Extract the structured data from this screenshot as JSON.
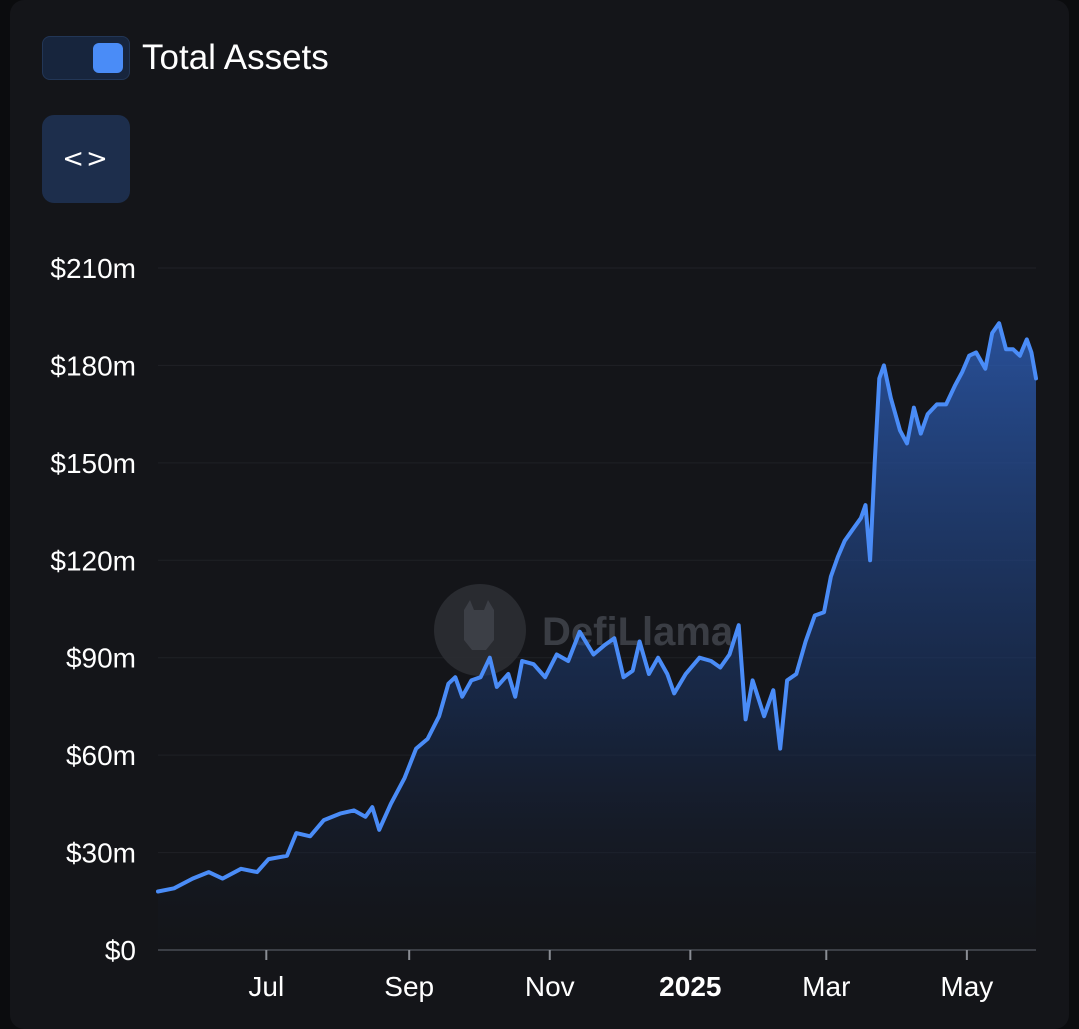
{
  "legend": {
    "label": "Total Assets",
    "color": "#4a8cf7"
  },
  "toolbar": {
    "embed_icon": "code-icon"
  },
  "watermark": {
    "text": "DefiLlama"
  },
  "chart_data": {
    "type": "area",
    "title": "",
    "xlabel": "",
    "ylabel": "",
    "grid": "horizontal",
    "legend_position": "top-left",
    "series": [
      {
        "name": "Total Assets",
        "color": "#4a8cf7",
        "points": [
          [
            "2024-05-15",
            18
          ],
          [
            "2024-05-22",
            19
          ],
          [
            "2024-05-30",
            22
          ],
          [
            "2024-06-06",
            24
          ],
          [
            "2024-06-12",
            22
          ],
          [
            "2024-06-20",
            25
          ],
          [
            "2024-06-27",
            24
          ],
          [
            "2024-07-02",
            28
          ],
          [
            "2024-07-10",
            29
          ],
          [
            "2024-07-14",
            36
          ],
          [
            "2024-07-20",
            35
          ],
          [
            "2024-07-26",
            40
          ],
          [
            "2024-08-02",
            42
          ],
          [
            "2024-08-08",
            43
          ],
          [
            "2024-08-13",
            41
          ],
          [
            "2024-08-16",
            44
          ],
          [
            "2024-08-19",
            37
          ],
          [
            "2024-08-24",
            45
          ],
          [
            "2024-08-30",
            53
          ],
          [
            "2024-09-04",
            62
          ],
          [
            "2024-09-09",
            65
          ],
          [
            "2024-09-14",
            72
          ],
          [
            "2024-09-18",
            82
          ],
          [
            "2024-09-21",
            84
          ],
          [
            "2024-09-24",
            78
          ],
          [
            "2024-09-28",
            83
          ],
          [
            "2024-10-02",
            84
          ],
          [
            "2024-10-06",
            90
          ],
          [
            "2024-10-09",
            81
          ],
          [
            "2024-10-14",
            85
          ],
          [
            "2024-10-17",
            78
          ],
          [
            "2024-10-20",
            89
          ],
          [
            "2024-10-25",
            88
          ],
          [
            "2024-10-30",
            84
          ],
          [
            "2024-11-04",
            91
          ],
          [
            "2024-11-09",
            89
          ],
          [
            "2024-11-14",
            98
          ],
          [
            "2024-11-20",
            91
          ],
          [
            "2024-11-25",
            94
          ],
          [
            "2024-11-29",
            96
          ],
          [
            "2024-12-03",
            84
          ],
          [
            "2024-12-07",
            86
          ],
          [
            "2024-12-10",
            95
          ],
          [
            "2024-12-14",
            85
          ],
          [
            "2024-12-18",
            90
          ],
          [
            "2024-12-22",
            85
          ],
          [
            "2024-12-25",
            79
          ],
          [
            "2024-12-30",
            85
          ],
          [
            "2025-01-05",
            90
          ],
          [
            "2025-01-10",
            89
          ],
          [
            "2025-01-14",
            87
          ],
          [
            "2025-01-18",
            91
          ],
          [
            "2025-01-22",
            100
          ],
          [
            "2025-01-25",
            71
          ],
          [
            "2025-01-28",
            83
          ],
          [
            "2025-02-02",
            72
          ],
          [
            "2025-02-06",
            80
          ],
          [
            "2025-02-09",
            62
          ],
          [
            "2025-02-12",
            83
          ],
          [
            "2025-02-16",
            85
          ],
          [
            "2025-02-20",
            95
          ],
          [
            "2025-02-24",
            103
          ],
          [
            "2025-02-28",
            104
          ],
          [
            "2025-03-03",
            115
          ],
          [
            "2025-03-06",
            121
          ],
          [
            "2025-03-09",
            126
          ],
          [
            "2025-03-13",
            130
          ],
          [
            "2025-03-16",
            133
          ],
          [
            "2025-03-18",
            137
          ],
          [
            "2025-03-20",
            120
          ],
          [
            "2025-03-22",
            150
          ],
          [
            "2025-03-24",
            176
          ],
          [
            "2025-03-26",
            180
          ],
          [
            "2025-03-29",
            170
          ],
          [
            "2025-04-02",
            160
          ],
          [
            "2025-04-05",
            156
          ],
          [
            "2025-04-08",
            167
          ],
          [
            "2025-04-11",
            159
          ],
          [
            "2025-04-14",
            165
          ],
          [
            "2025-04-18",
            168
          ],
          [
            "2025-04-22",
            168
          ],
          [
            "2025-04-26",
            174
          ],
          [
            "2025-04-29",
            178
          ],
          [
            "2025-05-02",
            183
          ],
          [
            "2025-05-05",
            184
          ],
          [
            "2025-05-09",
            179
          ],
          [
            "2025-05-12",
            190
          ],
          [
            "2025-05-15",
            193
          ],
          [
            "2025-05-18",
            185
          ],
          [
            "2025-05-21",
            185
          ],
          [
            "2025-05-24",
            183
          ],
          [
            "2025-05-27",
            188
          ],
          [
            "2025-05-29",
            184
          ],
          [
            "2025-05-31",
            176
          ]
        ]
      }
    ],
    "x_range": [
      "2024-05-15",
      "2025-05-31"
    ],
    "x_ticks": [
      {
        "date": "2024-07-01",
        "label": "Jul",
        "bold": false
      },
      {
        "date": "2024-09-01",
        "label": "Sep",
        "bold": false
      },
      {
        "date": "2024-11-01",
        "label": "Nov",
        "bold": false
      },
      {
        "date": "2025-01-01",
        "label": "2025",
        "bold": true
      },
      {
        "date": "2025-03-01",
        "label": "Mar",
        "bold": false
      },
      {
        "date": "2025-05-01",
        "label": "May",
        "bold": false
      }
    ],
    "y_ticks": [
      {
        "value": 0,
        "label": "$0"
      },
      {
        "value": 30,
        "label": "$30m"
      },
      {
        "value": 60,
        "label": "$60m"
      },
      {
        "value": 90,
        "label": "$90m"
      },
      {
        "value": 120,
        "label": "$120m"
      },
      {
        "value": 150,
        "label": "$150m"
      },
      {
        "value": 180,
        "label": "$180m"
      },
      {
        "value": 210,
        "label": "$210m"
      }
    ],
    "ylim": [
      0,
      210
    ],
    "y_unit": "$m"
  }
}
